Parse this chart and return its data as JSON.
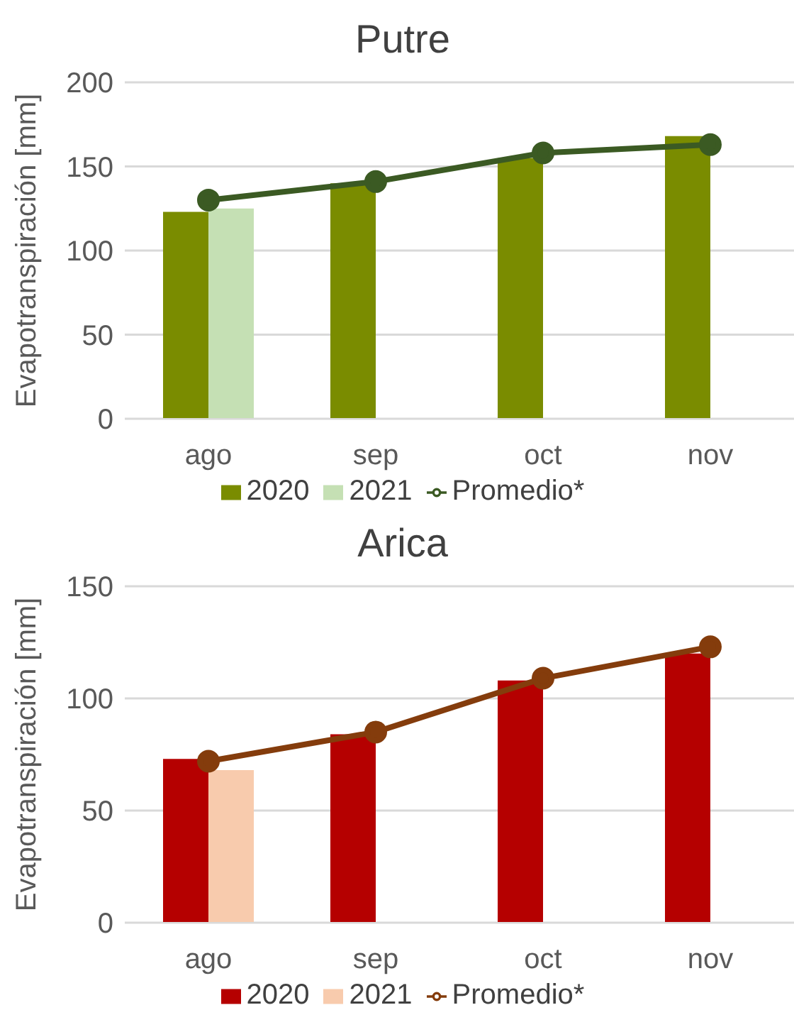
{
  "chart_data": [
    {
      "type": "bar",
      "title": "Putre",
      "ylabel": "Evapotranspiración [mm]",
      "categories": [
        "ago",
        "sep",
        "oct",
        "nov"
      ],
      "ylim": [
        0,
        200
      ],
      "yticks": [
        0,
        50,
        100,
        150,
        200
      ],
      "grid": "y",
      "legend": "bottom",
      "marker": "circle",
      "series": [
        {
          "name": "2020",
          "color": "#7a8c00",
          "values": [
            123,
            140,
            155,
            168
          ]
        },
        {
          "name": "2021",
          "color": "#c5e0b4",
          "values": [
            125,
            null,
            null,
            null
          ]
        },
        {
          "name": "Promedio*",
          "type": "line",
          "color": "#3b5a23",
          "values": [
            130,
            141,
            158,
            163
          ]
        }
      ]
    },
    {
      "type": "bar",
      "title": "Arica",
      "ylabel": "Evapotranspiración [mm]",
      "categories": [
        "ago",
        "sep",
        "oct",
        "nov"
      ],
      "ylim": [
        0,
        150
      ],
      "yticks": [
        0,
        50,
        100,
        150
      ],
      "grid": "y",
      "legend": "bottom",
      "marker": "circle",
      "series": [
        {
          "name": "2020",
          "color": "#b50000",
          "values": [
            73,
            84,
            108,
            120
          ]
        },
        {
          "name": "2021",
          "color": "#f8cbad",
          "values": [
            68,
            null,
            null,
            null
          ]
        },
        {
          "name": "Promedio*",
          "type": "line",
          "color": "#843c0c",
          "values": [
            72,
            85,
            109,
            123
          ]
        }
      ]
    }
  ]
}
